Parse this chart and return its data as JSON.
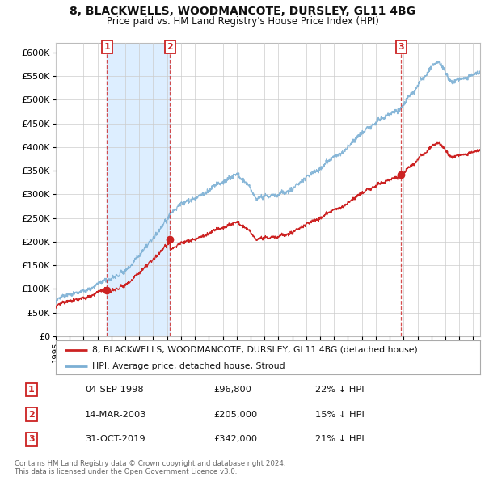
{
  "title1": "8, BLACKWELLS, WOODMANCOTE, DURSLEY, GL11 4BG",
  "title2": "Price paid vs. HM Land Registry's House Price Index (HPI)",
  "legend_property": "8, BLACKWELLS, WOODMANCOTE, DURSLEY, GL11 4BG (detached house)",
  "legend_hpi": "HPI: Average price, detached house, Stroud",
  "transactions": [
    {
      "num": 1,
      "date": "04-SEP-1998",
      "price": 96800,
      "pct": "22% ↓ HPI"
    },
    {
      "num": 2,
      "date": "14-MAR-2003",
      "price": 205000,
      "pct": "15% ↓ HPI"
    },
    {
      "num": 3,
      "date": "31-OCT-2019",
      "price": 342000,
      "pct": "21% ↓ HPI"
    }
  ],
  "transaction_dates_decimal": [
    1998.674,
    2003.204,
    2019.833
  ],
  "transaction_prices": [
    96800,
    205000,
    342000
  ],
  "copyright_text": "Contains HM Land Registry data © Crown copyright and database right 2024.\nThis data is licensed under the Open Government Licence v3.0.",
  "ylim": [
    0,
    620000
  ],
  "xlim_start": 1995.0,
  "xlim_end": 2025.5,
  "property_color": "#cc2222",
  "hpi_color": "#7bafd4",
  "hpi_fill_color": "#ddeeff",
  "shade_color": "#ddeeff",
  "background_color": "#ffffff",
  "grid_color": "#cccccc"
}
